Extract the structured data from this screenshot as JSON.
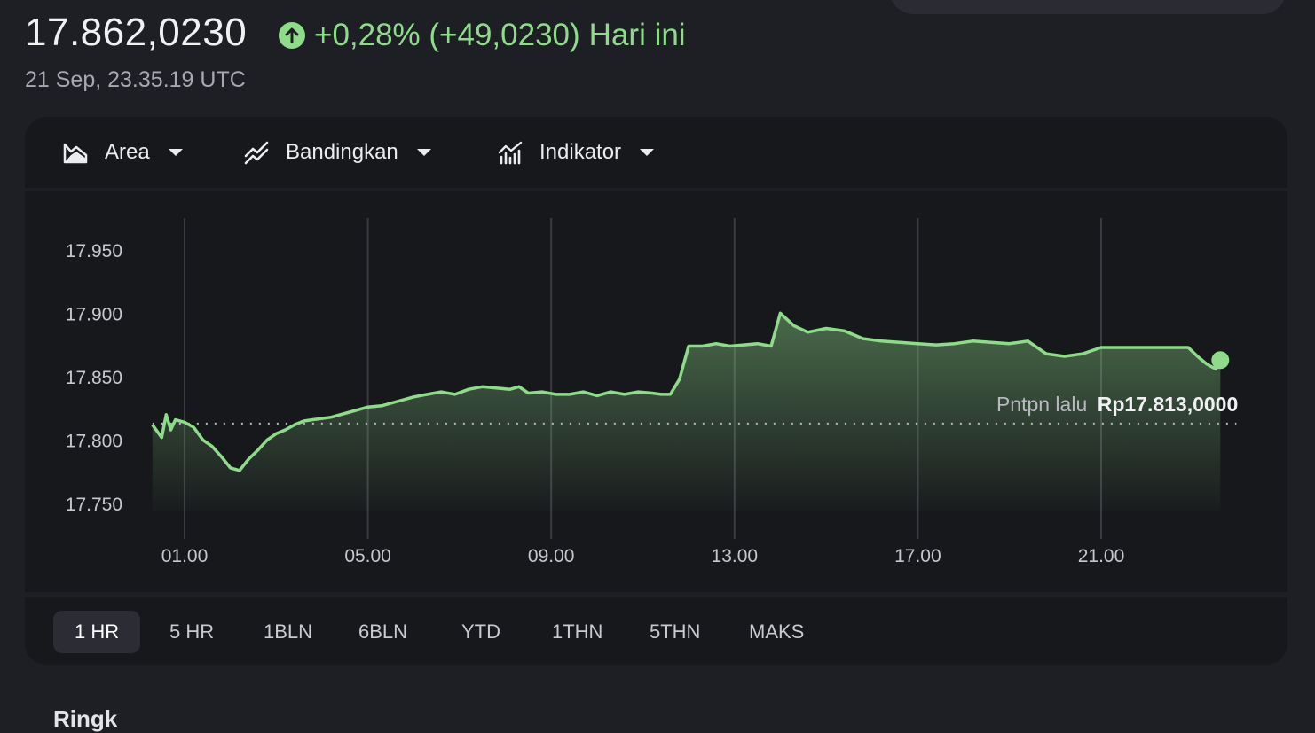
{
  "quote": {
    "price": "17.862,0230",
    "change": "+0,28% (+49,0230)",
    "period": "Hari ini",
    "timestamp": "21 Sep, 23.35.19 UTC",
    "up_color": "#8edc8a"
  },
  "toolbar": {
    "area_label": "Area",
    "compare_label": "Bandingkan",
    "indicator_label": "Indikator"
  },
  "chart_data": {
    "type": "area",
    "ylim": [
      17750,
      17975
    ],
    "yticks": [
      "17.950",
      "17.900",
      "17.850",
      "17.800",
      "17.750"
    ],
    "ytick_values": [
      17950,
      17900,
      17850,
      17800,
      17750
    ],
    "xlim": [
      0.3,
      24
    ],
    "xticks": [
      "01.00",
      "05.00",
      "09.00",
      "13.00",
      "17.00",
      "21.00"
    ],
    "xtick_values": [
      1,
      5,
      9,
      13,
      17,
      21
    ],
    "grid_vertical": true,
    "previous_close_label": "Pntpn lalu",
    "previous_close_text": "Rp17.813,0000",
    "previous_close": 17813,
    "line_color": "#8edc8a",
    "series": [
      {
        "x": [
          0.3,
          0.5,
          0.6,
          0.7,
          0.8,
          1.0,
          1.2,
          1.4,
          1.6,
          1.8,
          2.0,
          2.2,
          2.4,
          2.6,
          2.8,
          3.0,
          3.2,
          3.4,
          3.6,
          3.8,
          4.0,
          4.2,
          4.4,
          4.6,
          4.8,
          5.0,
          5.3,
          5.6,
          6.0,
          6.3,
          6.6,
          6.9,
          7.2,
          7.5,
          7.8,
          8.1,
          8.3,
          8.5,
          8.8,
          9.1,
          9.4,
          9.7,
          10.0,
          10.3,
          10.6,
          10.9,
          11.2,
          11.4,
          11.6,
          11.8,
          12.0,
          12.3,
          12.6,
          12.9,
          13.2,
          13.5,
          13.8,
          14.0,
          14.3,
          14.6,
          15.0,
          15.4,
          15.8,
          16.2,
          16.6,
          17.0,
          17.4,
          17.8,
          18.2,
          18.6,
          19.0,
          19.4,
          19.8,
          20.2,
          20.6,
          21.0,
          21.5,
          22.0,
          22.5,
          22.9,
          23.1,
          23.3,
          23.5,
          23.6
        ],
        "y": [
          17812,
          17802,
          17820,
          17808,
          17816,
          17814,
          17810,
          17800,
          17795,
          17787,
          17778,
          17776,
          17785,
          17792,
          17800,
          17805,
          17808,
          17812,
          17815,
          17816,
          17817,
          17818,
          17820,
          17822,
          17824,
          17826,
          17827,
          17830,
          17834,
          17836,
          17838,
          17836,
          17840,
          17842,
          17841,
          17840,
          17842,
          17837,
          17838,
          17836,
          17836,
          17838,
          17835,
          17838,
          17836,
          17838,
          17837,
          17836,
          17836,
          17848,
          17874,
          17874,
          17876,
          17874,
          17875,
          17876,
          17874,
          17900,
          17890,
          17885,
          17888,
          17886,
          17880,
          17878,
          17877,
          17876,
          17875,
          17876,
          17878,
          17877,
          17876,
          17878,
          17868,
          17866,
          17868,
          17873,
          17873,
          17873,
          17873,
          17873,
          17866,
          17860,
          17856,
          17863
        ]
      }
    ]
  },
  "ranges": {
    "r1": "1 HR",
    "r2": "5 HR",
    "r3": "1BLN",
    "r4": "6BLN",
    "r5": "YTD",
    "r6": "1THN",
    "r7": "5THN",
    "r8": "MAKS"
  },
  "bottom": {
    "label": "Ringk"
  }
}
